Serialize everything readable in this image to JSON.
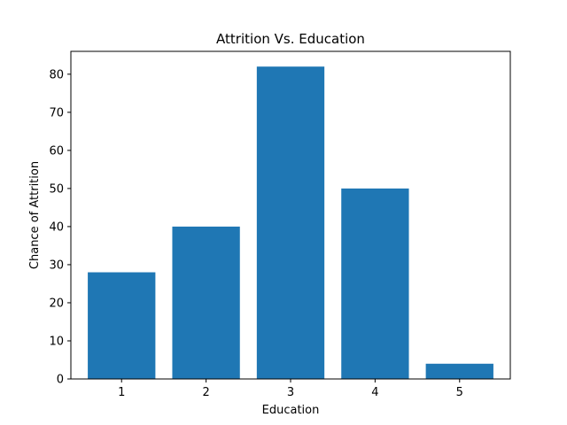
{
  "chart_data": {
    "type": "bar",
    "title": "Attrition Vs. Education",
    "xlabel": "Education",
    "ylabel": "Chance of Attrition",
    "categories": [
      "1",
      "2",
      "3",
      "4",
      "5"
    ],
    "values": [
      28,
      40,
      82,
      50,
      4
    ],
    "ylim": [
      0,
      86
    ],
    "yticks": [
      0,
      10,
      20,
      30,
      40,
      50,
      60,
      70,
      80
    ],
    "grid": false,
    "legend": "none",
    "bar_color": "#1f77b4"
  }
}
